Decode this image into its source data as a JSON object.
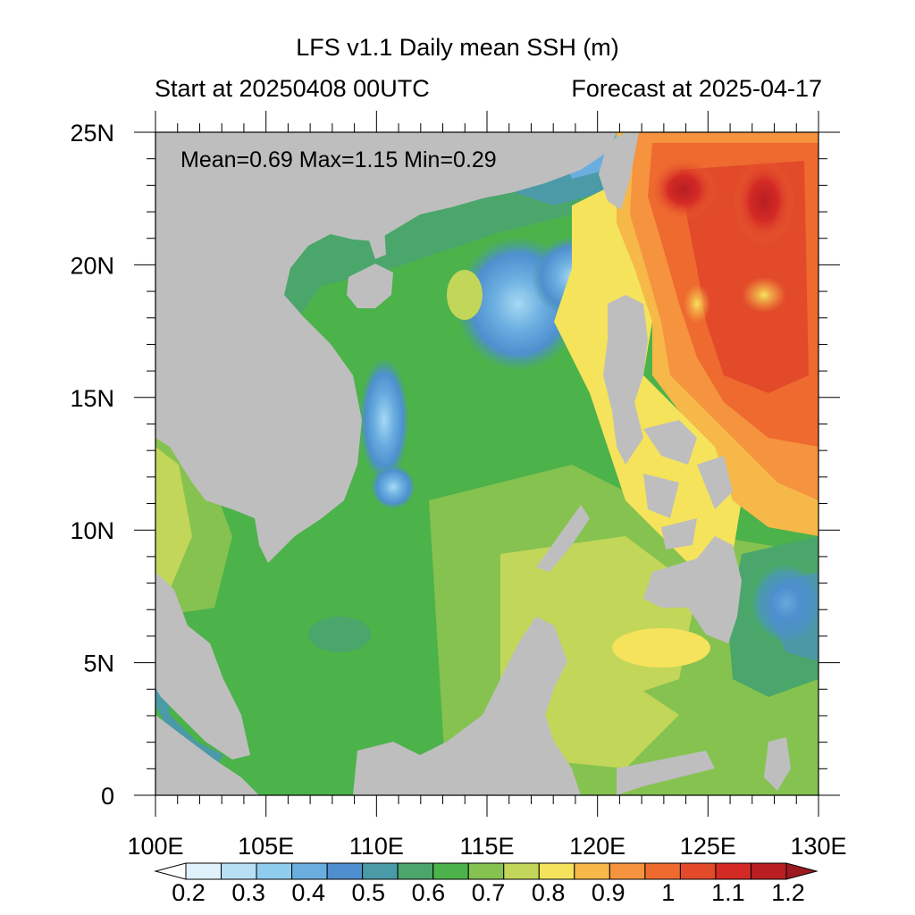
{
  "header": {
    "title": "LFS v1.1 Daily mean SSH (m)",
    "start_label": "Start at 20250408 00UTC",
    "forecast_label": "Forecast at 2025-04-17"
  },
  "stats": {
    "text": "Mean=0.69  Max=1.15  Min=0.29"
  },
  "map": {
    "lon_labels": [
      "100E",
      "105E",
      "110E",
      "115E",
      "120E",
      "125E",
      "130E"
    ],
    "lat_labels": [
      "25N",
      "20N",
      "15N",
      "10N",
      "5N",
      "0"
    ],
    "land_color": "#bebebe"
  },
  "colorbar": {
    "labels": [
      "0.2",
      "0.3",
      "0.4",
      "0.5",
      "0.6",
      "0.7",
      "0.8",
      "0.9",
      "1",
      "1.1",
      "1.2"
    ],
    "colors": [
      "#ffffff",
      "#dff1fb",
      "#b8e0f5",
      "#8fcdee",
      "#6aaee0",
      "#4e8fcf",
      "#4a9aa8",
      "#4aa66a",
      "#4cb24a",
      "#86c24f",
      "#c2d65a",
      "#f5e35b",
      "#f6b848",
      "#f5933f",
      "#ee6a2f",
      "#e24a2a",
      "#d42a26",
      "#b81e22",
      "#9a1a1f"
    ]
  }
}
